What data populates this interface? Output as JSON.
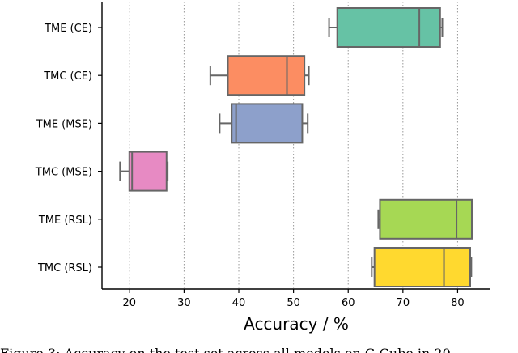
{
  "chart_data": {
    "type": "boxplot",
    "orientation": "horizontal",
    "xlabel": "Accuracy / %",
    "xticks": [
      20,
      30,
      40,
      50,
      60,
      70,
      80
    ],
    "xlim": [
      15,
      86
    ],
    "grid": "vertical-dotted",
    "categories": [
      "TME (CE)",
      "TMC (CE)",
      "TME (MSE)",
      "TMC (MSE)",
      "TME (RSL)",
      "TMC (RSL)"
    ],
    "boxes": [
      {
        "label": "TME (CE)",
        "whisker_low": 56.5,
        "q1": 58.0,
        "median": 73.0,
        "q3": 76.8,
        "whisker_high": 77.2,
        "color": "#66c2a5"
      },
      {
        "label": "TMC (CE)",
        "whisker_low": 34.8,
        "q1": 38.0,
        "median": 48.8,
        "q3": 52.0,
        "whisker_high": 52.8,
        "color": "#fc8d62"
      },
      {
        "label": "TME (MSE)",
        "whisker_low": 36.5,
        "q1": 38.7,
        "median": 39.5,
        "q3": 51.6,
        "whisker_high": 52.6,
        "color": "#8da0cb"
      },
      {
        "label": "TMC (MSE)",
        "whisker_low": 18.3,
        "q1": 20.0,
        "median": 20.5,
        "q3": 26.8,
        "whisker_high": 27.0,
        "color": "#e78ac3"
      },
      {
        "label": "TME (RSL)",
        "whisker_low": 65.5,
        "q1": 65.8,
        "median": 79.8,
        "q3": 82.6,
        "whisker_high": 82.6,
        "color": "#a6d854"
      },
      {
        "label": "TMC (RSL)",
        "whisker_low": 64.3,
        "q1": 64.8,
        "median": 77.5,
        "q3": 82.3,
        "whisker_high": 82.5,
        "color": "#ffd92f"
      }
    ]
  },
  "caption": "Figure 3: Accuracy on the test set across all models on C-Cube in 20"
}
